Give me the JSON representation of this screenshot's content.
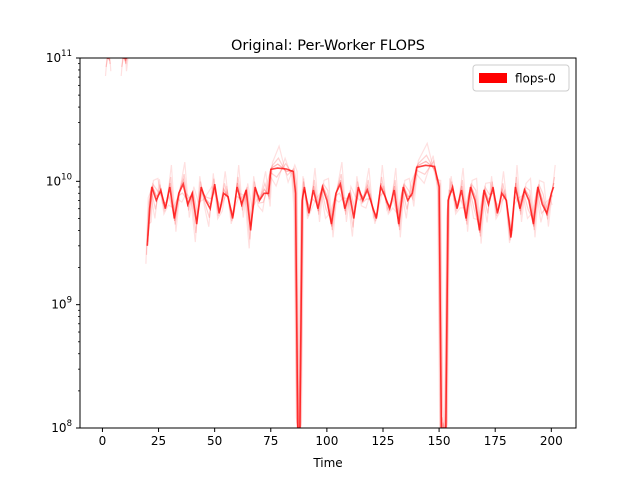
{
  "chart_data": {
    "type": "line",
    "title": "Original: Per-Worker FLOPS",
    "xlabel": "Time",
    "ylabel": "",
    "xlim": [
      -10,
      211
    ],
    "ylim": [
      100000000,
      100000000000
    ],
    "yscale": "log",
    "x_ticks": [
      0,
      25,
      50,
      75,
      100,
      125,
      150,
      175,
      200
    ],
    "y_ticks": [
      {
        "value": 100000000,
        "base": "10",
        "exp": "8"
      },
      {
        "value": 1000000000,
        "base": "10",
        "exp": "9"
      },
      {
        "value": 10000000000,
        "base": "10",
        "exp": "10"
      },
      {
        "value": 100000000000,
        "base": "10",
        "exp": "11"
      }
    ],
    "grid": false,
    "legend": {
      "position": "top-right",
      "entries": [
        {
          "label": "flops-0",
          "color": "#ff0000"
        }
      ]
    },
    "series": [
      {
        "name": "flops-0",
        "color": "#ff0000",
        "x": [
          0,
          1,
          2,
          3,
          4,
          8,
          9,
          10,
          11,
          12,
          19,
          20,
          21,
          22,
          24,
          26,
          28,
          30,
          32,
          34,
          36,
          38,
          40,
          42,
          44,
          46,
          48,
          50,
          52,
          54,
          56,
          58,
          60,
          62,
          64,
          66,
          68,
          70,
          72,
          74,
          75,
          78,
          82,
          85,
          86,
          87,
          88,
          89,
          90,
          92,
          94,
          96,
          98,
          100,
          102,
          104,
          106,
          108,
          110,
          112,
          114,
          116,
          118,
          120,
          122,
          124,
          126,
          128,
          130,
          132,
          134,
          136,
          138,
          140,
          144,
          148,
          150,
          151,
          152,
          153,
          154,
          156,
          158,
          160,
          162,
          164,
          166,
          168,
          170,
          172,
          174,
          176,
          178,
          180,
          182,
          184,
          186,
          188,
          190,
          192,
          194,
          196,
          198,
          200,
          201
        ],
        "y": [
          null,
          null,
          100000000000,
          100000000000,
          null,
          null,
          100000000000,
          100000000000,
          100000000000,
          null,
          null,
          3000000000,
          6000000000,
          9000000000,
          7000000000,
          8500000000,
          6000000000,
          9000000000,
          5000000000,
          8000000000,
          9500000000,
          6500000000,
          8000000000,
          4500000000,
          9000000000,
          7000000000,
          6000000000,
          9500000000,
          5500000000,
          8000000000,
          7500000000,
          5000000000,
          9000000000,
          6500000000,
          8500000000,
          4000000000,
          9000000000,
          7000000000,
          8000000000,
          8000000000,
          12500000000,
          12800000000,
          12600000000,
          12000000000,
          8000000000,
          100000000,
          100000000,
          7000000000,
          9000000000,
          5500000000,
          8500000000,
          6000000000,
          9000000000,
          7000000000,
          4500000000,
          8000000000,
          9500000000,
          6000000000,
          8000000000,
          5000000000,
          9000000000,
          7000000000,
          8500000000,
          6500000000,
          5000000000,
          9000000000,
          7500000000,
          6000000000,
          8500000000,
          4500000000,
          9000000000,
          7000000000,
          8000000000,
          13000000000,
          13500000000,
          13200000000,
          9000000000,
          100000000,
          100000000,
          100000000,
          7000000000,
          9000000000,
          6000000000,
          8500000000,
          5000000000,
          9000000000,
          7000000000,
          4000000000,
          8500000000,
          6500000000,
          9000000000,
          5500000000,
          8000000000,
          7000000000,
          3500000000,
          9000000000,
          6000000000,
          8500000000,
          7000000000,
          4500000000,
          9000000000,
          6500000000,
          5500000000,
          8000000000,
          9000000000
        ]
      }
    ]
  }
}
